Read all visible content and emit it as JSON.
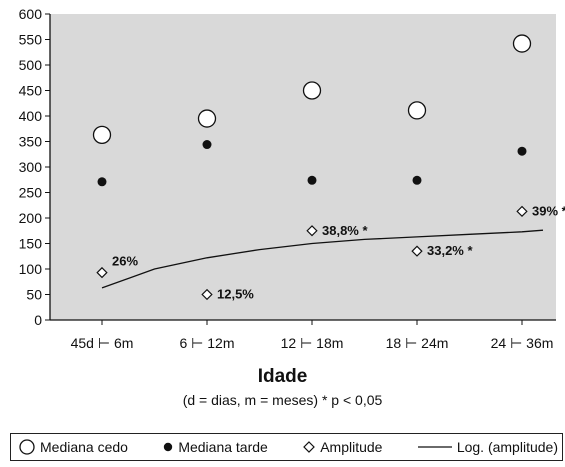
{
  "chart_data": {
    "type": "scatter",
    "categories": [
      "45d ⊢ 6m",
      "6 ⊢ 12m",
      "12 ⊢ 18m",
      "18 ⊢ 24m",
      "24 ⊢ 36m"
    ],
    "ylim": [
      0,
      600
    ],
    "yticks": [
      0,
      50,
      100,
      150,
      200,
      250,
      300,
      350,
      400,
      450,
      500,
      550,
      600
    ],
    "xlabel": "Idade",
    "note": "(d = dias, m = meses)   * p < 0,05",
    "grid": false,
    "legend_position": "bottom",
    "background_color": "#d9d9d9",
    "series": [
      {
        "name": "Mediana cedo",
        "marker": "open-circle",
        "values": [
          363,
          395,
          450,
          411,
          542
        ]
      },
      {
        "name": "Mediana tarde",
        "marker": "filled-circle",
        "values": [
          271,
          344,
          274,
          274,
          331
        ]
      },
      {
        "name": "Amplitude",
        "marker": "open-diamond",
        "values": [
          93,
          50,
          175,
          135,
          213
        ],
        "labels": [
          "26%",
          "12,5%",
          "38,8% *",
          "33,2% *",
          "39% *"
        ]
      },
      {
        "name": "Log. (amplitude)",
        "marker": "line",
        "x": [
          0,
          0.5,
          1,
          1.5,
          2,
          2.5,
          3,
          3.5,
          4,
          4.2
        ],
        "values": [
          63,
          100,
          122,
          138,
          150,
          158,
          163,
          168,
          173,
          176
        ]
      }
    ]
  }
}
